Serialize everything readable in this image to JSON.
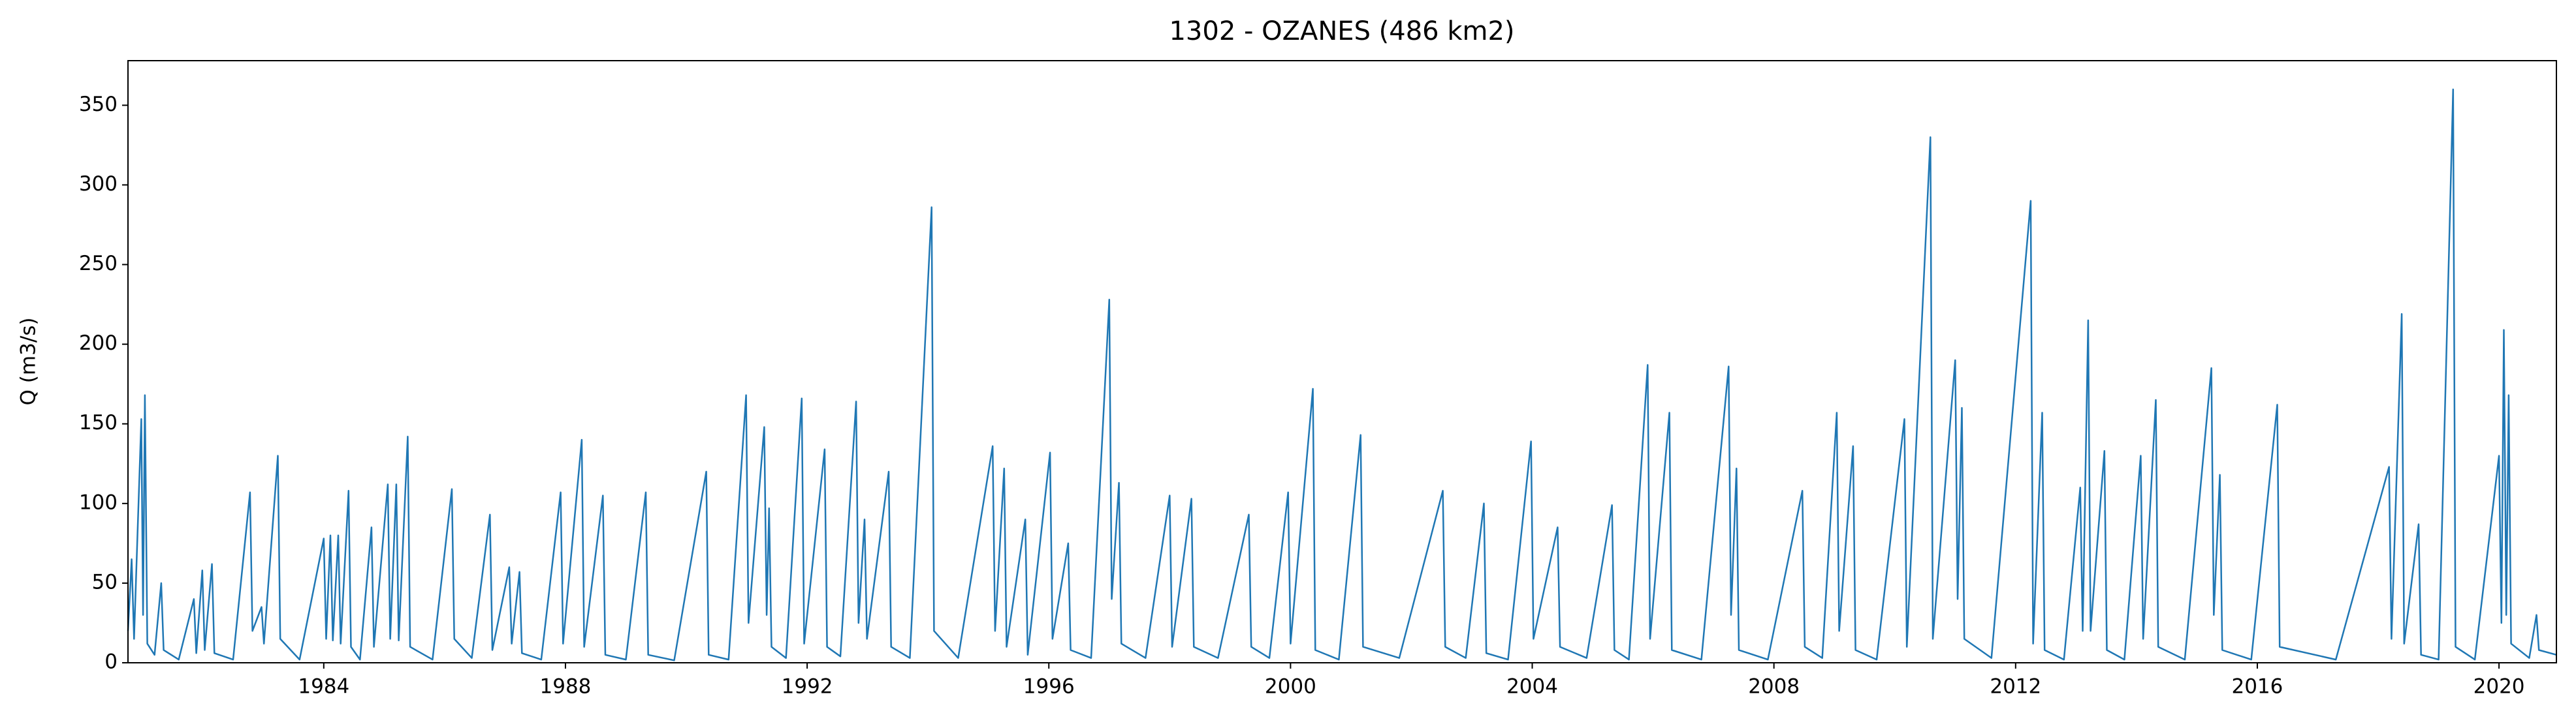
{
  "chart_data": {
    "type": "line",
    "title": "1302 - OZANES (486 km2)",
    "y_label": "Q (m3/s)",
    "x": [
      1980.76,
      1980.82,
      1980.86,
      1980.98,
      1981.01,
      1981.04,
      1981.08,
      1981.2,
      1981.31,
      1981.35,
      1981.6,
      1981.85,
      1981.89,
      1981.99,
      1982.03,
      1982.15,
      1982.19,
      1982.5,
      1982.78,
      1982.82,
      1982.97,
      1983.01,
      1983.24,
      1983.28,
      1983.6,
      1984.0,
      1984.04,
      1984.11,
      1984.15,
      1984.24,
      1984.28,
      1984.41,
      1984.45,
      1984.6,
      1984.79,
      1984.83,
      1985.06,
      1985.1,
      1985.2,
      1985.24,
      1985.39,
      1985.43,
      1985.8,
      1986.12,
      1986.16,
      1986.45,
      1986.75,
      1986.79,
      1987.07,
      1987.11,
      1987.24,
      1987.28,
      1987.6,
      1987.92,
      1987.96,
      1988.27,
      1988.31,
      1988.62,
      1988.66,
      1989.0,
      1989.33,
      1989.37,
      1989.8,
      1990.33,
      1990.37,
      1990.7,
      1990.99,
      1991.03,
      1991.29,
      1991.33,
      1991.37,
      1991.41,
      1991.65,
      1991.91,
      1991.95,
      1992.29,
      1992.33,
      1992.55,
      1992.81,
      1992.85,
      1992.95,
      1992.99,
      1993.35,
      1993.39,
      1993.7,
      1994.06,
      1994.1,
      1994.5,
      1995.07,
      1995.11,
      1995.26,
      1995.3,
      1995.61,
      1995.65,
      1996.02,
      1996.06,
      1996.32,
      1996.36,
      1996.7,
      1997.0,
      1997.04,
      1997.16,
      1997.2,
      1997.6,
      1998.0,
      1998.04,
      1998.36,
      1998.4,
      1998.8,
      1999.31,
      1999.35,
      1999.65,
      1999.96,
      2000.0,
      2000.37,
      2000.41,
      2000.8,
      2001.16,
      2001.2,
      2001.8,
      2002.52,
      2002.56,
      2002.9,
      2003.2,
      2003.24,
      2003.6,
      2003.98,
      2004.02,
      2004.42,
      2004.46,
      2004.9,
      2005.32,
      2005.36,
      2005.6,
      2005.91,
      2005.95,
      2006.27,
      2006.31,
      2006.8,
      2007.25,
      2007.29,
      2007.38,
      2007.42,
      2007.9,
      2008.47,
      2008.51,
      2008.8,
      2009.04,
      2009.08,
      2009.31,
      2009.35,
      2009.7,
      2010.16,
      2010.2,
      2010.59,
      2010.63,
      2011.0,
      2011.04,
      2011.11,
      2011.15,
      2011.6,
      2012.25,
      2012.29,
      2012.44,
      2012.48,
      2012.8,
      2013.07,
      2013.11,
      2013.2,
      2013.24,
      2013.47,
      2013.51,
      2013.8,
      2014.07,
      2014.11,
      2014.32,
      2014.36,
      2014.8,
      2015.24,
      2015.28,
      2015.38,
      2015.42,
      2015.9,
      2016.33,
      2016.37,
      2017.3,
      2018.18,
      2018.22,
      2018.39,
      2018.43,
      2018.67,
      2018.71,
      2019.0,
      2019.24,
      2019.28,
      2019.6,
      2020.0,
      2020.04,
      2020.08,
      2020.12,
      2020.16,
      2020.2,
      2020.5,
      2020.62,
      2020.66,
      2020.95
    ],
    "series": [
      {
        "color": "#1f77b4",
        "values": [
          20,
          65,
          15,
          153,
          30,
          168,
          12,
          5,
          50,
          8,
          2,
          40,
          6,
          58,
          8,
          62,
          6,
          2,
          107,
          20,
          35,
          12,
          130,
          15,
          2,
          78,
          15,
          80,
          14,
          80,
          12,
          108,
          10,
          2,
          85,
          10,
          112,
          15,
          112,
          14,
          142,
          10,
          2,
          109,
          15,
          3,
          93,
          8,
          60,
          12,
          57,
          6,
          2,
          107,
          12,
          140,
          10,
          105,
          5,
          2,
          107,
          5,
          1.5,
          120,
          5,
          2,
          168,
          25,
          148,
          30,
          97,
          10,
          3,
          166,
          12,
          134,
          10,
          4,
          164,
          25,
          90,
          15,
          120,
          10,
          3,
          286,
          20,
          3,
          136,
          20,
          122,
          10,
          90,
          5,
          132,
          15,
          75,
          8,
          3,
          228,
          40,
          113,
          12,
          3,
          105,
          10,
          103,
          10,
          3,
          93,
          10,
          3,
          107,
          12,
          172,
          8,
          2,
          143,
          10,
          3,
          108,
          10,
          3,
          100,
          6,
          2,
          139,
          15,
          85,
          10,
          3,
          99,
          8,
          2,
          187,
          15,
          157,
          8,
          2,
          186,
          30,
          122,
          8,
          2,
          108,
          10,
          3,
          157,
          20,
          136,
          8,
          2,
          153,
          10,
          330,
          15,
          190,
          40,
          160,
          15,
          3,
          290,
          12,
          157,
          8,
          2,
          110,
          20,
          215,
          20,
          133,
          8,
          2,
          130,
          15,
          165,
          10,
          2,
          185,
          30,
          118,
          8,
          2,
          162,
          10,
          2,
          123,
          15,
          219,
          12,
          87,
          5,
          2,
          360,
          10,
          2,
          130,
          25,
          209,
          30,
          168,
          12,
          3,
          30,
          8,
          5
        ]
      }
    ],
    "xlim": [
      1980.76,
      2020.95
    ],
    "xticks": [
      1984,
      1988,
      1992,
      1996,
      2000,
      2004,
      2008,
      2012,
      2016,
      2020
    ],
    "ylim": [
      0,
      378
    ],
    "yticks": [
      0,
      50,
      100,
      150,
      200,
      250,
      300,
      350
    ]
  }
}
